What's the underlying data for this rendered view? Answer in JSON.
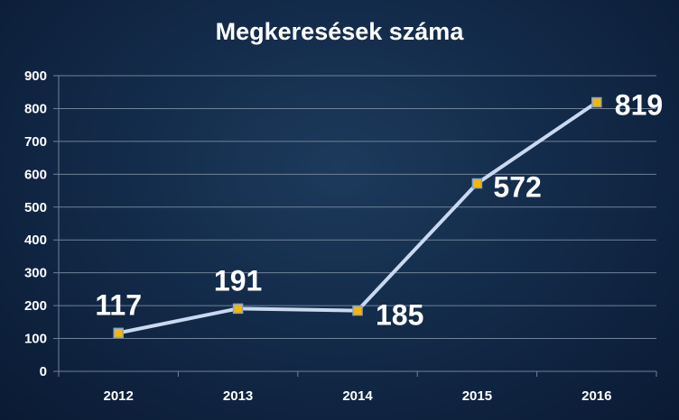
{
  "chart_data": {
    "type": "line",
    "title": "Megkeresések száma",
    "categories": [
      "2012",
      "2013",
      "2014",
      "2015",
      "2016"
    ],
    "values": [
      117,
      191,
      185,
      572,
      819
    ],
    "data_labels": [
      "117",
      "191",
      "185",
      "572",
      "819"
    ],
    "yticks": [
      "0",
      "100",
      "200",
      "300",
      "400",
      "500",
      "600",
      "700",
      "800",
      "900"
    ],
    "ylim": [
      0,
      900
    ],
    "grid": true,
    "legend": "none",
    "colors": {
      "line": "#c9d9f2",
      "marker_fill": "#f5b800",
      "marker_stroke": "#8aa2c8",
      "grid": "#6f8299",
      "text": "#ffffff"
    }
  }
}
